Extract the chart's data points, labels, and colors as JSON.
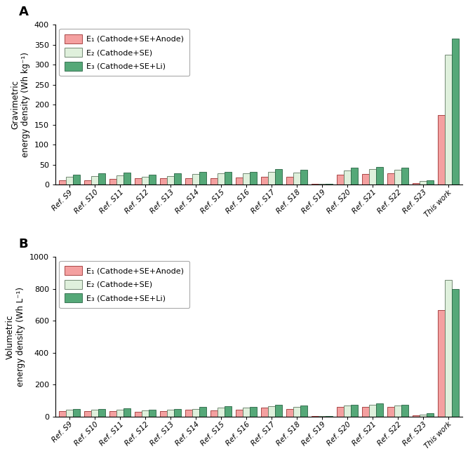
{
  "categories": [
    "Ref. S9",
    "Ref. S10",
    "Ref. S11",
    "Ref. S12",
    "Ref. S13",
    "Ref. S14",
    "Ref. S15",
    "Ref. S16",
    "Ref. S17",
    "Ref. S18",
    "Ref. S19",
    "Ref. S20",
    "Ref. S21",
    "Ref. S22",
    "Ref. S23",
    "This work"
  ],
  "gravimetric": {
    "E1": [
      12,
      12,
      14,
      17,
      17,
      17,
      17,
      18,
      20,
      20,
      3,
      25,
      27,
      28,
      5,
      175
    ],
    "E2": [
      20,
      22,
      23,
      20,
      22,
      27,
      28,
      28,
      33,
      30,
      3,
      35,
      40,
      37,
      9,
      325
    ],
    "E3": [
      26,
      28,
      30,
      26,
      28,
      33,
      33,
      32,
      40,
      37,
      3,
      42,
      45,
      43,
      12,
      365
    ]
  },
  "volumetric": {
    "E1": [
      33,
      33,
      35,
      30,
      33,
      42,
      40,
      42,
      55,
      48,
      3,
      60,
      62,
      60,
      10,
      665
    ],
    "E2": [
      42,
      42,
      45,
      38,
      42,
      50,
      58,
      55,
      65,
      62,
      3,
      68,
      75,
      70,
      15,
      855
    ],
    "E3": [
      47,
      48,
      52,
      43,
      47,
      60,
      65,
      62,
      73,
      68,
      3,
      75,
      83,
      75,
      20,
      800
    ]
  },
  "color_E1": "#F4A0A0",
  "color_E2": "#DFF0DC",
  "color_E3": "#55A878",
  "edge_color_E1": "#9B3030",
  "edge_color_E2": "#607860",
  "edge_color_E3": "#2A6645",
  "panel_A_ylabel_line1": "Gravimetric",
  "panel_A_ylabel_line2": "energy density (Wh kg⁻¹)",
  "panel_B_ylabel_line1": "Volumetric",
  "panel_B_ylabel_line2": "energy density (Wh L⁻¹)",
  "panel_A_ylim": [
    0,
    400
  ],
  "panel_B_ylim": [
    0,
    1000
  ],
  "panel_A_yticks": [
    0,
    50,
    100,
    150,
    200,
    250,
    300,
    350,
    400
  ],
  "panel_B_yticks": [
    0,
    200,
    400,
    600,
    800,
    1000
  ],
  "legend_labels": [
    "E₁ (Cathode+SE+Anode)",
    "E₂ (Cathode+SE)",
    "E₃ (Cathode+SE+Li)"
  ],
  "panel_A_label": "A",
  "panel_B_label": "B",
  "bar_width": 0.28,
  "fig_width": 6.67,
  "fig_height": 6.5
}
